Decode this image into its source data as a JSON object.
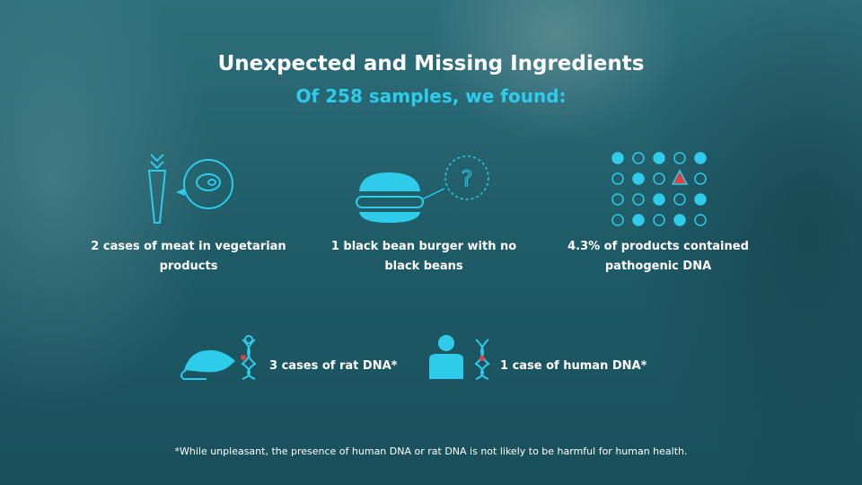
{
  "header": {
    "title": "Unexpected and Missing Ingredients",
    "subtitle": "Of 258 samples, we found:"
  },
  "findings": [
    {
      "text": "2 cases of meat in vegetarian products"
    },
    {
      "text": "1 black bean burger with no black beans"
    },
    {
      "text": "4.3% of products contained pathogenic DNA"
    },
    {
      "text": "3 cases of rat DNA*"
    },
    {
      "text": "1 case of human DNA*"
    }
  ],
  "footnote": "*While unpleasant, the presence of human DNA or rat DNA is not likely to be harmful for human health."
}
